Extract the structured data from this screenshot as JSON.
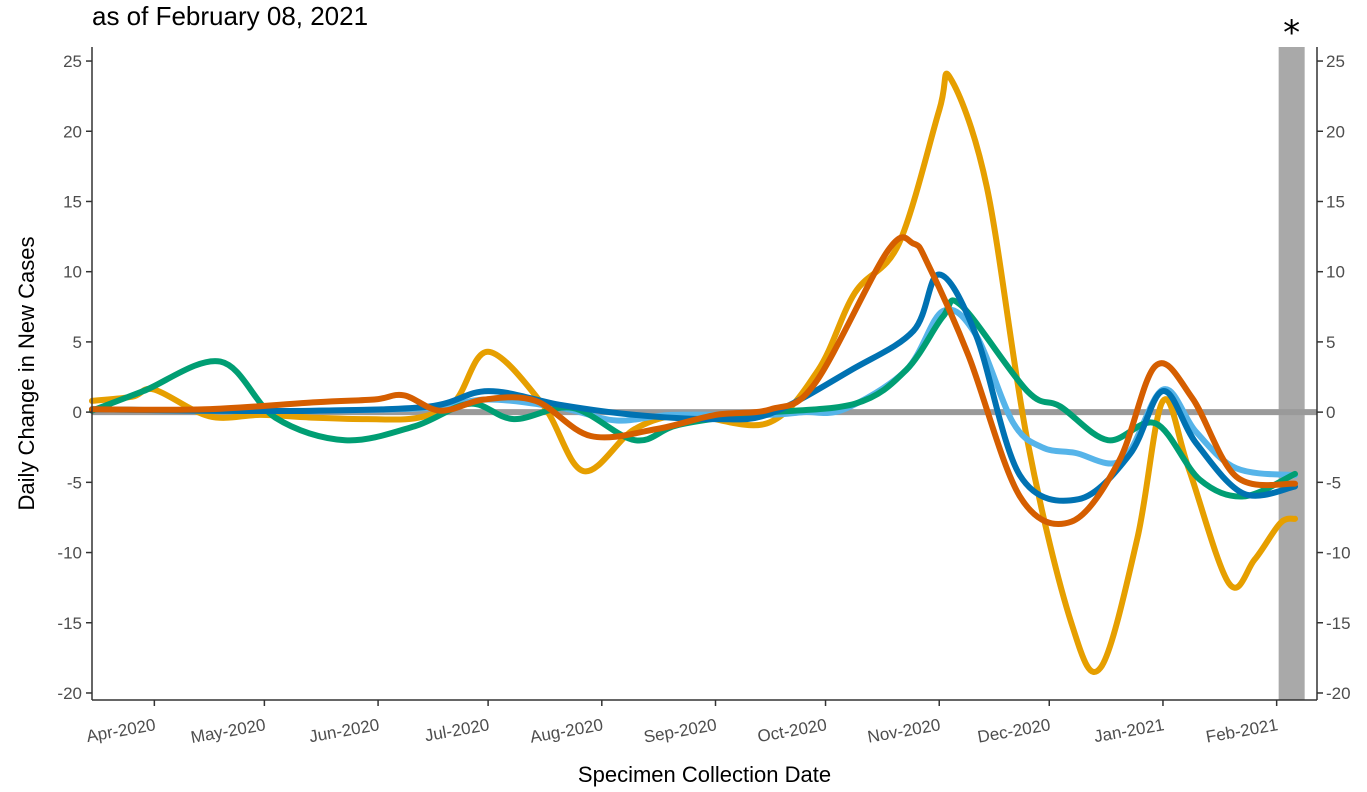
{
  "subtitle": "as of February 08, 2021",
  "marker": "*",
  "colors": {
    "zero_line": "#9a9a9a",
    "shaded_band": "#a9a9a9",
    "axis": "#333333"
  },
  "chart_data": {
    "type": "line",
    "xlabel": "Specimen Collection Date",
    "ylabel": "Daily Change in New Cases",
    "ylim": [
      -20.5,
      26
    ],
    "yticks": [
      -20,
      -15,
      -10,
      -5,
      0,
      5,
      10,
      15,
      20,
      25
    ],
    "xlim": [
      "2020-03-15",
      "2021-02-12"
    ],
    "xticks": [
      {
        "date": "2020-04-01",
        "label": "Apr-2020"
      },
      {
        "date": "2020-05-01",
        "label": "May-2020"
      },
      {
        "date": "2020-06-01",
        "label": "Jun-2020"
      },
      {
        "date": "2020-07-01",
        "label": "Jul-2020"
      },
      {
        "date": "2020-08-01",
        "label": "Aug-2020"
      },
      {
        "date": "2020-09-01",
        "label": "Sep-2020"
      },
      {
        "date": "2020-10-01",
        "label": "Oct-2020"
      },
      {
        "date": "2020-11-01",
        "label": "Nov-2020"
      },
      {
        "date": "2020-12-01",
        "label": "Dec-2020"
      },
      {
        "date": "2021-01-01",
        "label": "Jan-2021"
      },
      {
        "date": "2021-02-01",
        "label": "Feb-2021"
      }
    ],
    "shaded_region": [
      "2021-02-01",
      "2021-02-07"
    ],
    "grid": false,
    "legend": "none",
    "series": [
      {
        "color": "#E69F00",
        "x": [
          "2020-03-15",
          "2020-03-26",
          "2020-04-01",
          "2020-04-16",
          "2020-04-30",
          "2020-05-15",
          "2020-05-29",
          "2020-06-12",
          "2020-06-22",
          "2020-07-01",
          "2020-07-16",
          "2020-07-27",
          "2020-08-10",
          "2020-08-24",
          "2020-09-15",
          "2020-09-29",
          "2020-10-09",
          "2020-10-21",
          "2020-11-01",
          "2020-11-04",
          "2020-11-14",
          "2020-11-25",
          "2020-12-07",
          "2020-12-15",
          "2020-12-25",
          "2021-01-01",
          "2021-01-08",
          "2021-01-19",
          "2021-01-26",
          "2021-02-02",
          "2021-02-06"
        ],
        "y": [
          0.8,
          1.1,
          1.6,
          -0.3,
          -0.2,
          -0.4,
          -0.5,
          -0.4,
          0.8,
          4.3,
          0.5,
          -4.2,
          -1.2,
          -0.2,
          -0.8,
          3.0,
          8.5,
          12.0,
          21.5,
          23.8,
          16.0,
          -2.0,
          -15.0,
          -18.2,
          -9.0,
          0.8,
          -4.0,
          -12.2,
          -10.5,
          -7.9,
          -7.6
        ]
      },
      {
        "color": "#56B4E9",
        "x": [
          "2020-03-15",
          "2020-04-14",
          "2020-05-15",
          "2020-06-15",
          "2020-07-01",
          "2020-07-21",
          "2020-08-05",
          "2020-08-20",
          "2020-09-15",
          "2020-09-25",
          "2020-10-06",
          "2020-10-23",
          "2020-11-02",
          "2020-11-11",
          "2020-11-21",
          "2020-11-29",
          "2020-12-08",
          "2020-12-21",
          "2021-01-01",
          "2021-01-10",
          "2021-01-21",
          "2021-02-06"
        ],
        "y": [
          0.2,
          0.1,
          0.1,
          0.3,
          0.9,
          0.3,
          -0.6,
          -0.2,
          -0.2,
          0.0,
          0.2,
          3.0,
          7.2,
          5.5,
          -0.7,
          -2.5,
          -2.9,
          -3.4,
          1.6,
          -1.4,
          -4.0,
          -4.5
        ]
      },
      {
        "color": "#009E73",
        "x": [
          "2020-03-15",
          "2020-03-29",
          "2020-04-19",
          "2020-05-04",
          "2020-05-23",
          "2020-06-11",
          "2020-06-26",
          "2020-07-08",
          "2020-07-24",
          "2020-08-10",
          "2020-08-22",
          "2020-09-12",
          "2020-10-09",
          "2020-10-23",
          "2020-11-02",
          "2020-11-07",
          "2020-11-25",
          "2020-12-04",
          "2020-12-17",
          "2020-12-30",
          "2021-01-11",
          "2021-01-23",
          "2021-02-06"
        ],
        "y": [
          0.1,
          1.5,
          3.6,
          -0.4,
          -2.0,
          -1.0,
          0.6,
          -0.5,
          0.3,
          -2.0,
          -0.9,
          -0.1,
          0.6,
          3.0,
          6.8,
          7.6,
          1.5,
          0.4,
          -2.0,
          -0.8,
          -4.8,
          -6.0,
          -4.4
        ]
      },
      {
        "color": "#0072B2",
        "x": [
          "2020-03-15",
          "2020-04-15",
          "2020-05-15",
          "2020-06-15",
          "2020-07-01",
          "2020-07-21",
          "2020-08-10",
          "2020-09-01",
          "2020-09-16",
          "2020-10-08",
          "2020-10-25",
          "2020-11-01",
          "2020-11-11",
          "2020-11-23",
          "2020-12-09",
          "2020-12-23",
          "2021-01-01",
          "2021-01-10",
          "2021-01-23",
          "2021-02-06"
        ],
        "y": [
          0.2,
          0.1,
          0.1,
          0.4,
          1.5,
          0.5,
          -0.2,
          -0.5,
          -0.1,
          3.0,
          5.8,
          9.8,
          5.5,
          -4.5,
          -6.2,
          -3.0,
          1.5,
          -2.2,
          -5.8,
          -5.3
        ]
      },
      {
        "color": "#D55E00",
        "x": [
          "2020-03-15",
          "2020-04-15",
          "2020-05-15",
          "2020-05-31",
          "2020-06-08",
          "2020-06-18",
          "2020-06-30",
          "2020-07-14",
          "2020-07-29",
          "2020-08-16",
          "2020-09-01",
          "2020-09-16",
          "2020-09-28",
          "2020-10-18",
          "2020-10-25",
          "2020-10-29",
          "2020-11-09",
          "2020-11-23",
          "2020-12-07",
          "2020-12-20",
          "2020-12-30",
          "2021-01-09",
          "2021-01-21",
          "2021-02-06"
        ],
        "y": [
          0.2,
          0.2,
          0.7,
          0.9,
          1.2,
          0.1,
          0.9,
          0.8,
          -1.7,
          -1.2,
          -0.2,
          0.2,
          2.0,
          11.5,
          12.0,
          10.5,
          4.0,
          -6.0,
          -7.8,
          -3.5,
          3.3,
          1.0,
          -4.6,
          -5.1
        ]
      }
    ]
  }
}
